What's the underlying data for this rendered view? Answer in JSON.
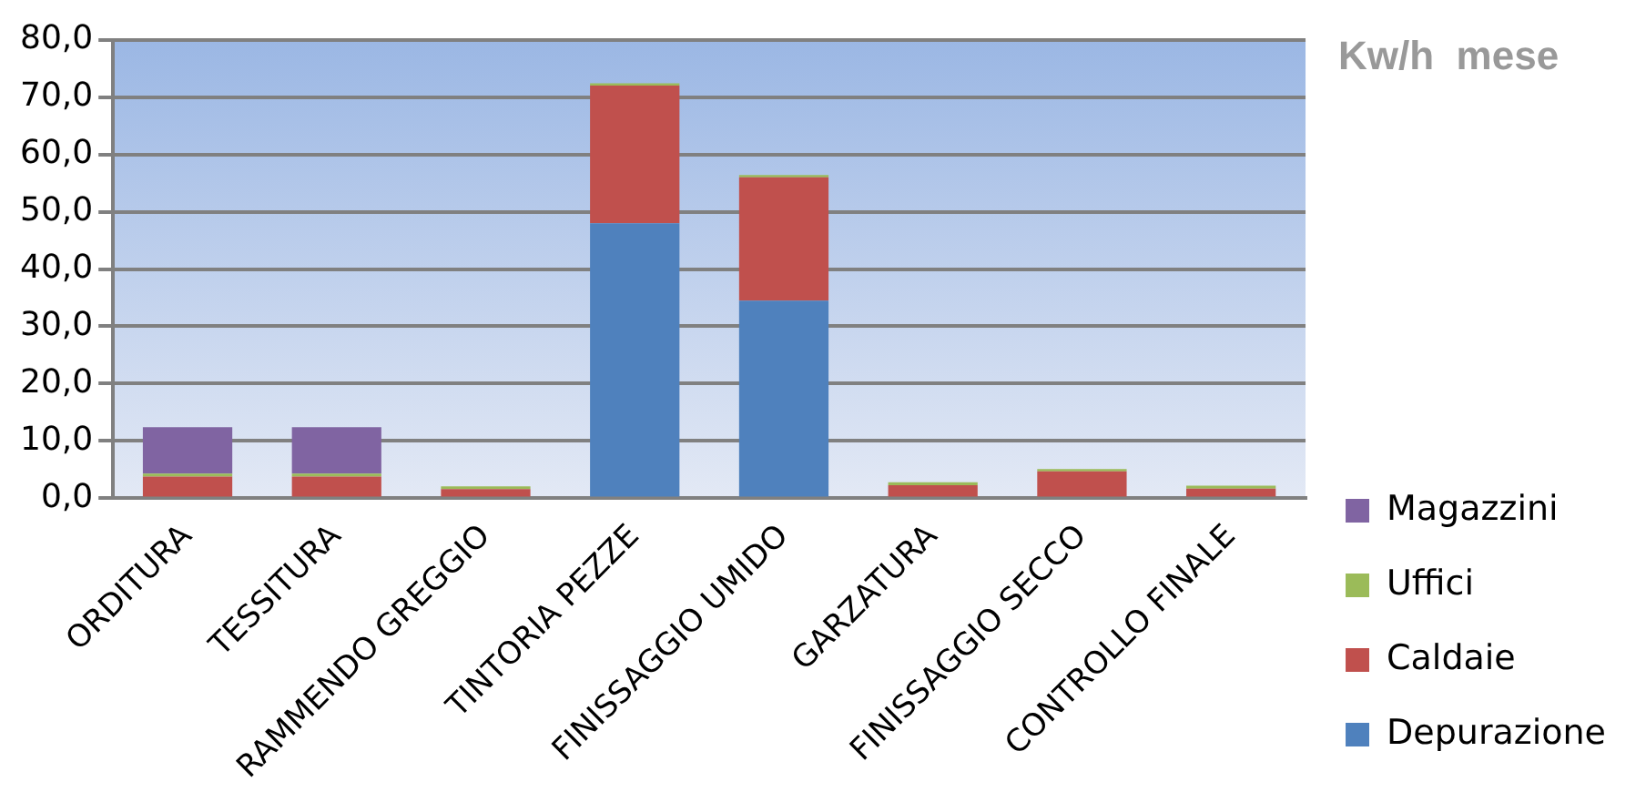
{
  "chart_data": {
    "type": "bar",
    "title": "Kw/h  mese",
    "stacked": true,
    "legend": "right",
    "grid": "y",
    "categories": [
      "ORDITURA",
      "TESSITURA",
      "RAMMENDO GREGGIO",
      "TINTORIA PEZZE",
      "FINISSAGGIO UMIDO",
      "GARZATURA",
      "FINISSAGGIO SECCO",
      "CONTROLLO FINALE"
    ],
    "series": [
      {
        "name": "Depurazione",
        "color": "#4f81bd",
        "values": [
          0,
          0,
          0,
          48.0,
          34.5,
          0,
          0,
          0
        ]
      },
      {
        "name": "Caldaie",
        "color": "#c0504d",
        "values": [
          3.8,
          3.8,
          1.6,
          24.0,
          21.5,
          2.3,
          4.7,
          1.7
        ]
      },
      {
        "name": "Uffici",
        "color": "#9bbb59",
        "values": [
          0.5,
          0.5,
          0.5,
          0.4,
          0.4,
          0.5,
          0.4,
          0.5
        ]
      },
      {
        "name": "Magazzini",
        "color": "#8064a2",
        "values": [
          8.1,
          8.1,
          0,
          0,
          0,
          0,
          0,
          0
        ]
      }
    ],
    "ylim": [
      0,
      80
    ],
    "yticks": [
      {
        "value": 0,
        "label": "0,0"
      },
      {
        "value": 10,
        "label": "10,0"
      },
      {
        "value": 20,
        "label": "20,0"
      },
      {
        "value": 30,
        "label": "30,0"
      },
      {
        "value": 40,
        "label": "40,0"
      },
      {
        "value": 50,
        "label": "50,0"
      },
      {
        "value": 60,
        "label": "60,0"
      },
      {
        "value": 70,
        "label": "70,0"
      },
      {
        "value": 80,
        "label": "80,0"
      }
    ]
  }
}
